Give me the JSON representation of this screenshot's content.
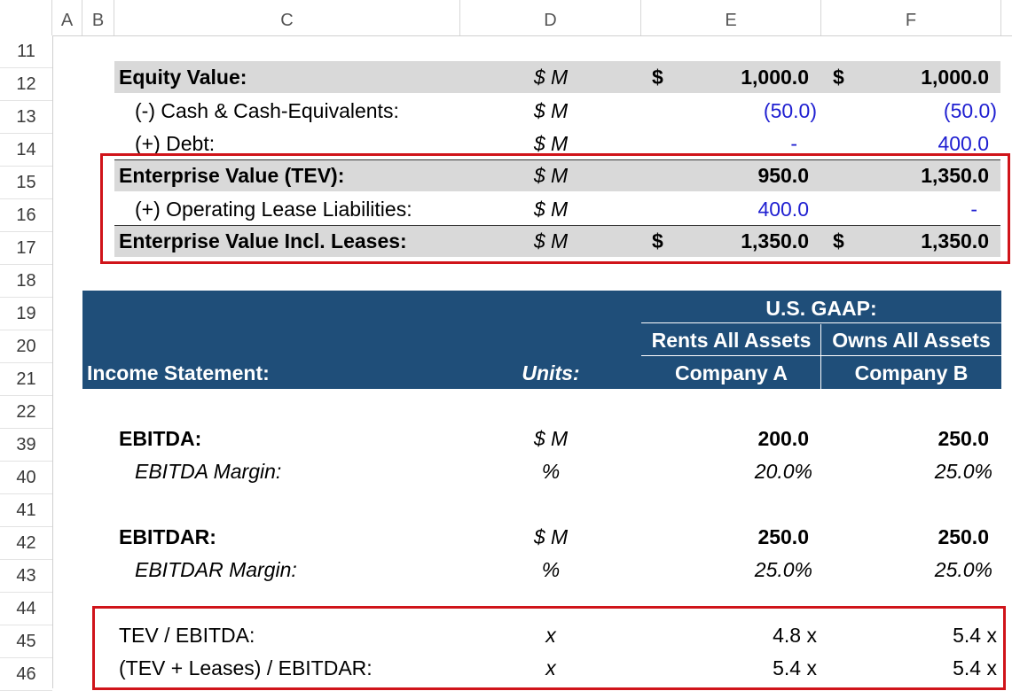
{
  "columns": [
    "A",
    "B",
    "C",
    "D",
    "E",
    "F"
  ],
  "rows": [
    "11",
    "12",
    "13",
    "14",
    "15",
    "16",
    "17",
    "18",
    "19",
    "20",
    "21",
    "22",
    "39",
    "40",
    "41",
    "42",
    "43",
    "44",
    "45",
    "46"
  ],
  "valuation": {
    "equity_value": {
      "label": "Equity Value:",
      "units": "$ M",
      "cur_a": "$",
      "a": "1,000.0",
      "cur_b": "$",
      "b": "1,000.0"
    },
    "cash": {
      "label": "(-) Cash & Cash-Equivalents:",
      "units": "$ M",
      "a": "(50.0)",
      "b": "(50.0)"
    },
    "debt": {
      "label": "(+) Debt:",
      "units": "$ M",
      "a": "-",
      "b": "400.0"
    },
    "tev": {
      "label": "Enterprise Value (TEV):",
      "units": "$ M",
      "a": "950.0",
      "b": "1,350.0"
    },
    "leases": {
      "label": "(+) Operating Lease Liabilities:",
      "units": "$ M",
      "a": "400.0",
      "b": "-"
    },
    "tev_leases": {
      "label": "Enterprise Value Incl. Leases:",
      "units": "$ M",
      "cur_a": "$",
      "a": "1,350.0",
      "cur_b": "$",
      "b": "1,350.0"
    }
  },
  "income_statement": {
    "gaap_label": "U.S. GAAP:",
    "col_a_desc": "Rents All Assets",
    "col_b_desc": "Owns All Assets",
    "title": "Income Statement:",
    "units_header": "Units:",
    "col_a_name": "Company A",
    "col_b_name": "Company B",
    "ebitda": {
      "label": "EBITDA:",
      "units": "$ M",
      "a": "200.0",
      "b": "250.0"
    },
    "ebitda_margin": {
      "label": "EBITDA Margin:",
      "units": "%",
      "a": "20.0%",
      "b": "25.0%"
    },
    "ebitdar": {
      "label": "EBITDAR:",
      "units": "$ M",
      "a": "250.0",
      "b": "250.0"
    },
    "ebitdar_margin": {
      "label": "EBITDAR Margin:",
      "units": "%",
      "a": "25.0%",
      "b": "25.0%"
    },
    "tev_ebitda": {
      "label": "TEV / EBITDA:",
      "units": "x",
      "a": "4.8 x",
      "b": "5.4 x"
    },
    "tevl_ebitdar": {
      "label": "(TEV + Leases) / EBITDAR:",
      "units": "x",
      "a": "5.4 x",
      "b": "5.4 x"
    }
  },
  "colors": {
    "header_blue": "#1f4e79",
    "input_blue": "#1f1fd1",
    "highlight_red": "#d0141a",
    "band_gray": "#d9d9d9"
  }
}
